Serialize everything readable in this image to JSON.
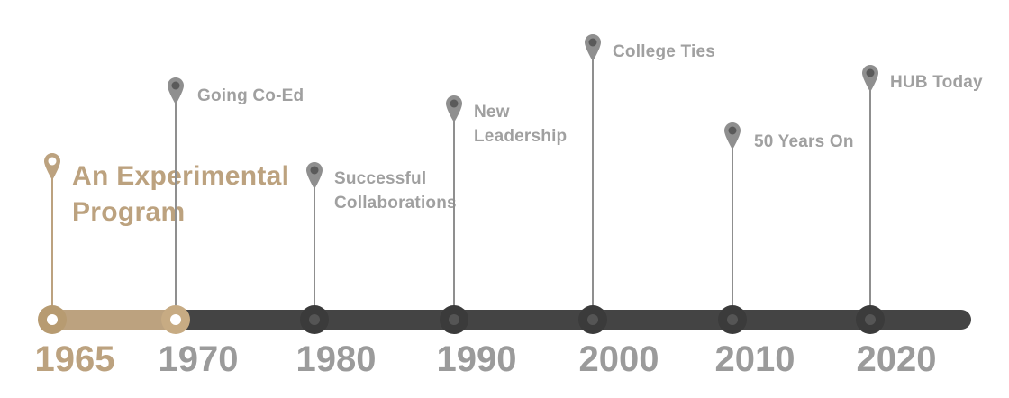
{
  "timeline": {
    "active_color": "#bca27f",
    "inactive_color": "#9b9b9b",
    "track_color": "#444444",
    "progress": 0.155,
    "events": [
      {
        "year": "1965",
        "label": [
          "An Experimental",
          "Program"
        ],
        "active": true
      },
      {
        "year": "1970",
        "label": [
          "Going Co-Ed"
        ],
        "active": false
      },
      {
        "year": "1980",
        "label": [
          "Successful",
          "Collaborations"
        ],
        "active": false
      },
      {
        "year": "1990",
        "label": [
          "New",
          "Leadership"
        ],
        "active": false
      },
      {
        "year": "2000",
        "label": [
          "College Ties"
        ],
        "active": false
      },
      {
        "year": "2010",
        "label": [
          "50 Years On"
        ],
        "active": false
      },
      {
        "year": "2020",
        "label": [
          "HUB Today"
        ],
        "active": false
      }
    ]
  }
}
